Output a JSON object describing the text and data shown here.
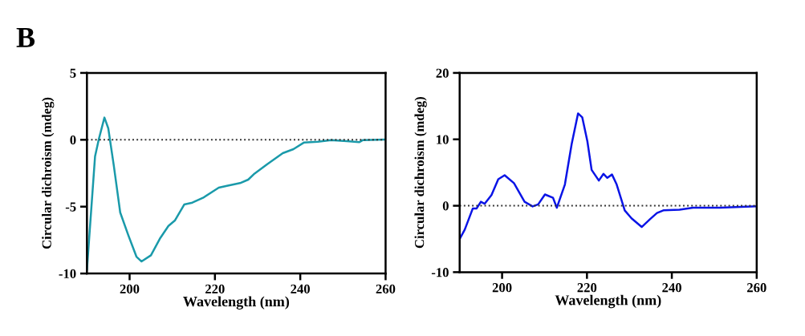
{
  "chart_data": [
    {
      "type": "line",
      "xlabel": "Wavelength (nm)",
      "ylabel": "Circular dichroism (mdeg)",
      "annotations": [
        "B"
      ],
      "xlim": [
        190,
        260
      ],
      "xticks": [
        200,
        220,
        240,
        260
      ],
      "ylim": [
        -10,
        5
      ],
      "yticks": [
        -10,
        -5,
        0,
        5
      ],
      "grid": false,
      "legend": false,
      "ref_lines": [
        {
          "axis": "y",
          "value": 0,
          "color": "#333333",
          "line_style": "dotted"
        }
      ],
      "series": [
        {
          "color": "#1a9aaa",
          "x": [
            190,
            191.9,
            192.8,
            194.1,
            195,
            196.3,
            197.8,
            199.7,
            201.6,
            202.8,
            205,
            207.2,
            209.1,
            210.6,
            212.8,
            214.7,
            217.2,
            220.9,
            222.8,
            225.9,
            227.8,
            229.1,
            232.2,
            235.9,
            238.4,
            240.9,
            244.1,
            247.2,
            250.9,
            253.8,
            254.7,
            259.7
          ],
          "values": [
            -9.7,
            -1.24,
            0.06,
            1.66,
            0.86,
            -1.94,
            -5.44,
            -7.14,
            -8.74,
            -9.1,
            -8.64,
            -7.34,
            -6.44,
            -6.04,
            -4.84,
            -4.7,
            -4.34,
            -3.58,
            -3.44,
            -3.24,
            -2.98,
            -2.58,
            -1.84,
            -1.0,
            -0.7,
            -0.2,
            -0.14,
            -0.02,
            -0.1,
            -0.18,
            -0.02,
            0.02
          ]
        }
      ]
    },
    {
      "type": "line",
      "xlabel": "Wavelength (nm)",
      "ylabel": "Circular dichroism (mdeg)",
      "xlim": [
        190,
        260
      ],
      "xticks": [
        200,
        220,
        240,
        260
      ],
      "ylim": [
        -10,
        20
      ],
      "yticks": [
        -10,
        0,
        10,
        20
      ],
      "grid": false,
      "legend": false,
      "ref_lines": [
        {
          "axis": "y",
          "value": 0,
          "color": "#333333",
          "line_style": "dotted"
        }
      ],
      "series": [
        {
          "color": "#0a14e6",
          "x": [
            190,
            191.2,
            193.1,
            194,
            195,
            195.9,
            197.5,
            199.1,
            200.6,
            202.8,
            205.3,
            207.2,
            208.5,
            210.1,
            212,
            212.9,
            214.8,
            216.4,
            217.9,
            218.9,
            220.1,
            221.1,
            222.8,
            223.9,
            224.8,
            225.9,
            227,
            228.9,
            230.5,
            232.9,
            234.9,
            236.5,
            238,
            241.8,
            245,
            251.3,
            259.7
          ],
          "values": [
            -5.0,
            -3.6,
            -0.4,
            -0.4,
            0.6,
            0.3,
            1.6,
            4.0,
            4.6,
            3.4,
            0.6,
            -0.1,
            0.2,
            1.7,
            1.2,
            -0.3,
            3.2,
            9.3,
            13.9,
            13.3,
            9.7,
            5.4,
            3.8,
            4.8,
            4.2,
            4.7,
            3.2,
            -0.7,
            -1.9,
            -3.2,
            -2.0,
            -1.1,
            -0.7,
            -0.6,
            -0.3,
            -0.3,
            -0.1
          ]
        }
      ]
    }
  ]
}
